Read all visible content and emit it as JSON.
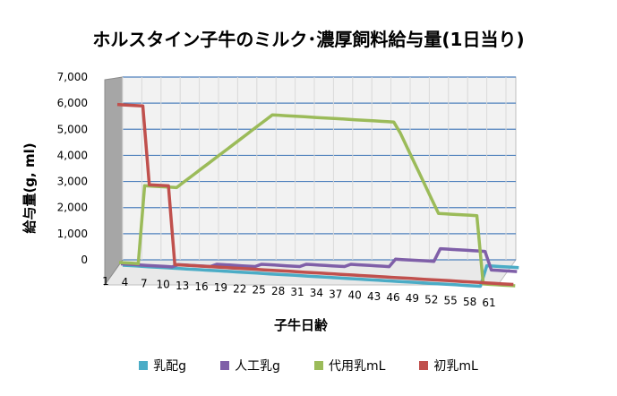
{
  "chart_data": {
    "type": "line",
    "title": "ホルスタイン子牛のミルク･濃厚飼料給与量(1日当り)",
    "xlabel": "子牛日齢",
    "ylabel": "給与量(g, ml)",
    "ylim": [
      0,
      7000
    ],
    "yticks": [
      "0",
      "1,000",
      "2,000",
      "3,000",
      "4,000",
      "5,000",
      "6,000",
      "7,000"
    ],
    "x": [
      1,
      2,
      3,
      4,
      5,
      6,
      7,
      8,
      9,
      10,
      11,
      12,
      13,
      14,
      15,
      16,
      17,
      18,
      19,
      20,
      21,
      22,
      23,
      24,
      25,
      26,
      27,
      28,
      29,
      30,
      31,
      32,
      33,
      34,
      35,
      36,
      37,
      38,
      39,
      40,
      41,
      42,
      43,
      44,
      45,
      46,
      47,
      48,
      49,
      50,
      51,
      52,
      53,
      54,
      55,
      56,
      57,
      58,
      59,
      60,
      61,
      62,
      63
    ],
    "xtick_labels": [
      "1",
      "4",
      "7",
      "10",
      "13",
      "16",
      "19",
      "22",
      "25",
      "28",
      "31",
      "34",
      "37",
      "40",
      "43",
      "46",
      "49",
      "52",
      "55",
      "58",
      "61"
    ],
    "grid": true,
    "legend_position": "bottom",
    "series": [
      {
        "name": "乳配g",
        "color": "#4bacc6",
        "values": [
          0,
          0,
          0,
          0,
          0,
          0,
          0,
          0,
          0,
          0,
          0,
          0,
          0,
          0,
          0,
          0,
          0,
          0,
          0,
          0,
          0,
          0,
          0,
          0,
          0,
          0,
          0,
          0,
          0,
          0,
          0,
          0,
          0,
          0,
          0,
          0,
          0,
          0,
          0,
          0,
          0,
          0,
          0,
          0,
          0,
          0,
          0,
          0,
          0,
          0,
          0,
          0,
          0,
          0,
          0,
          0,
          0,
          800,
          800,
          800,
          800,
          800,
          800
        ]
      },
      {
        "name": "人工乳g",
        "color": "#7f5fa8",
        "values": [
          0,
          0,
          0,
          0,
          0,
          0,
          0,
          0,
          0,
          100,
          100,
          100,
          100,
          100,
          100,
          200,
          200,
          200,
          200,
          200,
          200,
          200,
          300,
          300,
          300,
          300,
          300,
          300,
          300,
          400,
          400,
          400,
          400,
          400,
          400,
          400,
          500,
          500,
          500,
          500,
          500,
          500,
          500,
          800,
          800,
          800,
          800,
          800,
          800,
          800,
          1300,
          1300,
          1300,
          1300,
          1300,
          1300,
          1300,
          1300,
          600,
          600,
          600,
          600,
          600
        ]
      },
      {
        "name": "代用乳mL",
        "color": "#9bbb59",
        "values": [
          0,
          0,
          0,
          0,
          3000,
          3000,
          3000,
          3000,
          3000,
          3000,
          3200,
          3400,
          3600,
          3800,
          4000,
          4200,
          4400,
          4600,
          4800,
          5000,
          5200,
          5400,
          5600,
          5800,
          6000,
          6000,
          6000,
          6000,
          6000,
          6000,
          6000,
          6000,
          6000,
          6000,
          6000,
          6000,
          6000,
          6000,
          6000,
          6000,
          6000,
          6000,
          6000,
          6000,
          5600,
          5100,
          4600,
          4100,
          3600,
          3100,
          2600,
          2600,
          2600,
          2600,
          2600,
          2600,
          2600,
          0,
          0,
          0,
          0,
          0,
          0
        ]
      },
      {
        "name": "初乳mL",
        "color": "#c0504d",
        "values": [
          6000,
          6000,
          6000,
          6000,
          6000,
          3000,
          3000,
          3000,
          3000,
          0,
          0,
          0,
          0,
          0,
          0,
          0,
          0,
          0,
          0,
          0,
          0,
          0,
          0,
          0,
          0,
          0,
          0,
          0,
          0,
          0,
          0,
          0,
          0,
          0,
          0,
          0,
          0,
          0,
          0,
          0,
          0,
          0,
          0,
          0,
          0,
          0,
          0,
          0,
          0,
          0,
          0,
          0,
          0,
          0,
          0,
          0,
          0,
          0,
          0,
          0,
          0,
          0,
          0
        ]
      }
    ]
  }
}
